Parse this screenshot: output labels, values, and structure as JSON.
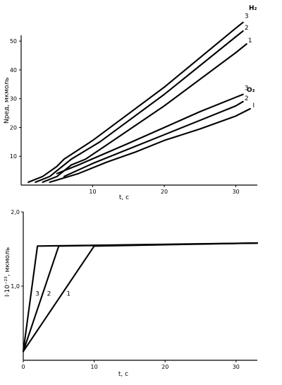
{
  "chart_data": [
    {
      "type": "line",
      "xlabel": "t, c",
      "ylabel": "Nред, мкмоль",
      "xlim": [
        0,
        33
      ],
      "ylim": [
        0,
        52
      ],
      "x_ticks": [
        "10",
        "20",
        "30"
      ],
      "y_ticks": [
        "10",
        "20",
        "30",
        "40",
        "50"
      ],
      "gas_labels": [
        "H₂",
        "O₂"
      ],
      "series": [
        {
          "name": "3",
          "gas": "H₂",
          "x": [
            1,
            3,
            5,
            6,
            10,
            20,
            30,
            31
          ],
          "y": [
            1,
            3,
            6.5,
            9,
            15.5,
            34,
            54.5,
            56.5
          ]
        },
        {
          "name": "2",
          "gas": "H₂",
          "x": [
            2,
            4,
            6,
            7,
            11,
            20,
            30,
            31
          ],
          "y": [
            1,
            3,
            7,
            9,
            15,
            31.5,
            51.5,
            53.5
          ]
        },
        {
          "name": "1",
          "gas": "H₂",
          "x": [
            3,
            5,
            7,
            9,
            12,
            20,
            30,
            31.5
          ],
          "y": [
            1,
            3,
            7,
            9,
            14,
            27.5,
            46,
            49
          ]
        },
        {
          "name": "3",
          "gas": "O₂",
          "x": [
            5,
            8,
            15,
            20,
            25,
            30,
            31
          ],
          "y": [
            4,
            7,
            14.5,
            20,
            25.5,
            30.5,
            31.5
          ]
        },
        {
          "name": "2",
          "gas": "O₂",
          "x": [
            6,
            10,
            15,
            20,
            25,
            30,
            31
          ],
          "y": [
            3,
            7.5,
            12.5,
            17.5,
            22.5,
            27.5,
            29
          ]
        },
        {
          "name": "I",
          "gas": "O₂",
          "x": [
            4,
            8,
            12,
            16,
            20,
            25,
            30,
            32
          ],
          "y": [
            1,
            4,
            8,
            11.5,
            15.5,
            19.5,
            24,
            26.5
          ]
        }
      ]
    },
    {
      "type": "line",
      "xlabel": "t, c",
      "ylabel": "I·10⁻²³, мкмоль",
      "xlim": [
        0,
        33
      ],
      "ylim": [
        0,
        2.0
      ],
      "x_ticks": [
        "0",
        "10",
        "20",
        "30"
      ],
      "y_ticks": [
        "1,0",
        "2,0"
      ],
      "series": [
        {
          "name": "3",
          "x": [
            0,
            2,
            33
          ],
          "y": [
            0.12,
            1.54,
            1.58
          ]
        },
        {
          "name": "2",
          "x": [
            0,
            5,
            33
          ],
          "y": [
            0.12,
            1.54,
            1.58
          ]
        },
        {
          "name": "1",
          "x": [
            0,
            10,
            33
          ],
          "y": [
            0.12,
            1.54,
            1.58
          ]
        }
      ]
    }
  ]
}
